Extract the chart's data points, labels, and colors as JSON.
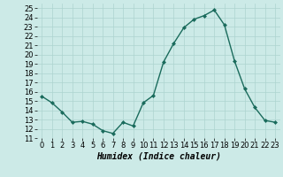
{
  "x": [
    0,
    1,
    2,
    3,
    4,
    5,
    6,
    7,
    8,
    9,
    10,
    11,
    12,
    13,
    14,
    15,
    16,
    17,
    18,
    19,
    20,
    21,
    22,
    23
  ],
  "y": [
    15.5,
    14.8,
    13.8,
    12.7,
    12.8,
    12.5,
    11.8,
    11.5,
    12.7,
    12.3,
    14.8,
    15.6,
    19.2,
    21.2,
    22.9,
    23.8,
    24.2,
    24.8,
    23.2,
    19.3,
    16.3,
    14.3,
    12.9,
    12.7
  ],
  "line_color": "#1a6b5c",
  "marker": "D",
  "marker_size": 2.0,
  "line_width": 1.0,
  "background_color": "#cceae7",
  "grid_color": "#add4d0",
  "xlabel": "Humidex (Indice chaleur)",
  "xlabel_fontsize": 7,
  "tick_fontsize": 6,
  "xlim": [
    -0.5,
    23.5
  ],
  "ylim": [
    11,
    25.5
  ],
  "yticks": [
    11,
    12,
    13,
    14,
    15,
    16,
    17,
    18,
    19,
    20,
    21,
    22,
    23,
    24,
    25
  ],
  "xticks": [
    0,
    1,
    2,
    3,
    4,
    5,
    6,
    7,
    8,
    9,
    10,
    11,
    12,
    13,
    14,
    15,
    16,
    17,
    18,
    19,
    20,
    21,
    22,
    23
  ]
}
